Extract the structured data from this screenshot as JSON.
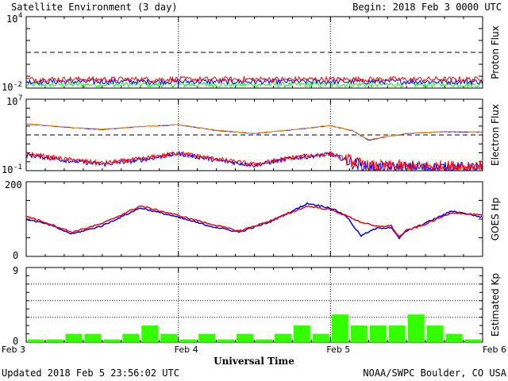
{
  "header": {
    "title": "Satellite Environment (3 day)",
    "begin": "Begin:  2018 Feb 3 0000 UTC"
  },
  "footer": {
    "updated": "Updated 2018 Feb  5 23:56:02 UTC",
    "credit": "NOAA/SWPC Boulder, CO USA"
  },
  "colors": {
    "proton_red": "#ff0000",
    "proton_blue": "#0000ff",
    "proton_green": "#00ff00",
    "electron_orange": "#ff9900",
    "electron_blue": "#0000ff",
    "electron_red": "#ff0000",
    "hp_red": "#ff0000",
    "hp_blue": "#0000ff",
    "kp_bar": "#33ff00"
  },
  "chart_data": [
    {
      "type": "line",
      "ylabel": "Proton Flux",
      "scale": "log",
      "y_ticks": [
        {
          "exp": "4",
          "label": "10"
        },
        {
          "exp": "-2",
          "label": "10"
        }
      ],
      "ylim": [
        0.01,
        10000
      ],
      "threshold": 10,
      "series": [
        {
          "color": "red",
          "level": 0.055
        },
        {
          "color": "blue",
          "level": 0.035
        },
        {
          "color": "green",
          "level": 0.02
        }
      ]
    },
    {
      "type": "line",
      "ylabel": "Electron Flux",
      "scale": "log",
      "y_ticks": [
        {
          "exp": "7",
          "label": "10"
        },
        {
          "exp": "-1",
          "label": "10"
        }
      ],
      "ylim": [
        0.1,
        10000000
      ],
      "threshold": 1000,
      "x": [
        0,
        0.25,
        0.5,
        0.75,
        1,
        1.25,
        1.5,
        1.75,
        2,
        2.15,
        2.25,
        2.35,
        2.5,
        2.75,
        3
      ],
      "series": [
        {
          "color": "orange",
          "values": [
            18000,
            8000,
            4500,
            9000,
            15000,
            3500,
            1500,
            4000,
            12000,
            3000,
            300,
            600,
            1500,
            2500,
            2200
          ]
        },
        {
          "color": "blue",
          "values": [
            17000,
            7500,
            4000,
            8500,
            14000,
            3200,
            1400,
            3800,
            11000,
            2800,
            250,
            550,
            1400,
            2300,
            2000
          ]
        },
        {
          "color": "red",
          "values": [
            8,
            2,
            0.7,
            2,
            10,
            2,
            0.5,
            3,
            8,
            1,
            0.3,
            0.3,
            0.3,
            0.3,
            0.3
          ]
        },
        {
          "color": "blue",
          "values": [
            6,
            1.5,
            0.5,
            1.5,
            8,
            1.5,
            0.4,
            2.5,
            7,
            0.7,
            0.2,
            0.2,
            0.2,
            0.2,
            0.2
          ]
        }
      ]
    },
    {
      "type": "line",
      "ylabel": "GOES Hp",
      "ylim": [
        0,
        200
      ],
      "y_ticks": [
        "200",
        "0"
      ],
      "x": [
        0,
        0.15,
        0.3,
        0.5,
        0.75,
        0.95,
        1.2,
        1.4,
        1.6,
        1.85,
        2.0,
        2.1,
        2.2,
        2.3,
        2.4,
        2.45,
        2.5,
        2.6,
        2.8,
        3
      ],
      "series": [
        {
          "color": "red",
          "values": [
            108,
            88,
            65,
            88,
            135,
            115,
            88,
            68,
            95,
            135,
            125,
            110,
            92,
            80,
            82,
            52,
            70,
            82,
            118,
            110
          ]
        },
        {
          "color": "blue",
          "values": [
            100,
            85,
            60,
            82,
            130,
            110,
            82,
            65,
            92,
            142,
            130,
            110,
            55,
            75,
            78,
            48,
            68,
            85,
            122,
            105
          ]
        }
      ]
    },
    {
      "type": "bar",
      "ylabel": "Estimated Kp",
      "ylim": [
        0,
        9
      ],
      "y_ticks": [
        "9",
        "0"
      ],
      "values": [
        0.33,
        0.33,
        1,
        1,
        0.33,
        1,
        2,
        1,
        0.33,
        1,
        0.33,
        1,
        0.33,
        1,
        2,
        1,
        3.33,
        2,
        2,
        2,
        3.33,
        2,
        1,
        0.33
      ]
    }
  ],
  "x_ticks": [
    "Feb 3",
    "Feb 4",
    "Feb 5",
    "Feb 6"
  ],
  "xlabel": "Universal Time"
}
